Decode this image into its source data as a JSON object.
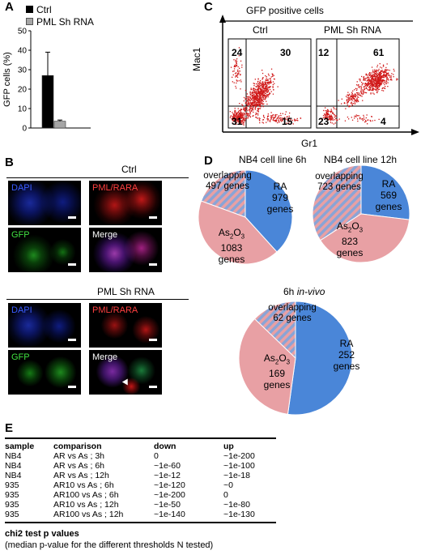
{
  "panels": {
    "A": "A",
    "B": "B",
    "C": "C",
    "D": "D",
    "E": "E"
  },
  "panel_a": {
    "legend": [
      "Ctrl",
      "PML Sh RNA"
    ],
    "colors": {
      "ctrl": "#000000",
      "sh": "#a6a6a6"
    }
  },
  "chart_data": {
    "type": "bar",
    "categories": [
      ""
    ],
    "series": [
      {
        "name": "Ctrl",
        "values": [
          27
        ],
        "error": [
          12
        ]
      },
      {
        "name": "PML Sh RNA",
        "values": [
          3.5
        ],
        "error": [
          0.6
        ]
      }
    ],
    "ylabel": "GFP cells (%)",
    "ylim": [
      0,
      50
    ],
    "yticks": [
      0,
      10,
      20,
      30,
      40,
      50
    ]
  },
  "panel_b": {
    "ctrl_title": "Ctrl",
    "sh_title": "PML Sh RNA",
    "labels": {
      "dapi": "DAPI",
      "pml": "PML/RARA",
      "gfp": "GFP",
      "merge": "Merge"
    }
  },
  "panel_c": {
    "title": "GFP positive cells",
    "ylabel": "Mac1",
    "xlabel": "Gr1",
    "ctrl": {
      "name": "Ctrl",
      "q": [
        "24",
        "30",
        "31",
        "15"
      ]
    },
    "sh": {
      "name": "PML Sh RNA",
      "q": [
        "12",
        "61",
        "23",
        "4"
      ]
    }
  },
  "panel_d": {
    "pie1": {
      "title": "NB4 cell line 6h",
      "overlap": [
        "overlapping",
        "497 genes"
      ],
      "ra": [
        "RA",
        "979",
        "genes"
      ],
      "as": [
        "As",
        "1083",
        "genes"
      ]
    },
    "pie2": {
      "title": "NB4 cell line 12h",
      "overlap": [
        "overlapping",
        "723 genes"
      ],
      "ra": [
        "RA",
        "569",
        "genes"
      ],
      "as": [
        "As",
        "823",
        "genes"
      ]
    },
    "pie3": {
      "title_a": "6h ",
      "title_b": "in-vivo",
      "overlap": [
        "overlapping",
        "62 genes"
      ],
      "ra": [
        "RA",
        "252",
        "genes"
      ],
      "as": [
        "As",
        "169",
        "genes"
      ]
    },
    "as_sub": "2",
    "as_tail": "O",
    "as_sub2": "3",
    "colors": {
      "ra": "#4a86d8",
      "as": "#e8a0a4",
      "stripe": "#8aa4d6"
    }
  },
  "panel_e": {
    "headers": [
      "sample",
      "comparison",
      "down",
      "up"
    ],
    "rows": [
      [
        "NB4",
        "AR vs As ; 3h",
        "0",
        "~1e-200"
      ],
      [
        "NB4",
        "AR vs As ; 6h",
        "~1e-60",
        "~1e-100"
      ],
      [
        "NB4",
        "AR vs As ; 12h",
        "~1e-12",
        "~1e-18"
      ],
      [
        "935",
        "AR10 vs As ; 6h",
        "~1e-120",
        "~0"
      ],
      [
        "935",
        "AR100 vs As ; 6h",
        "~1e-200",
        "0"
      ],
      [
        "935",
        "AR10 vs As ; 12h",
        "~1e-50",
        "~1e-80"
      ],
      [
        "935",
        "AR100 vs As ; 12h",
        "~1e-140",
        "~1e-130"
      ]
    ],
    "caption1": "chi2 test p values",
    "caption2": "(median p-value for the different thresholds N tested)"
  }
}
